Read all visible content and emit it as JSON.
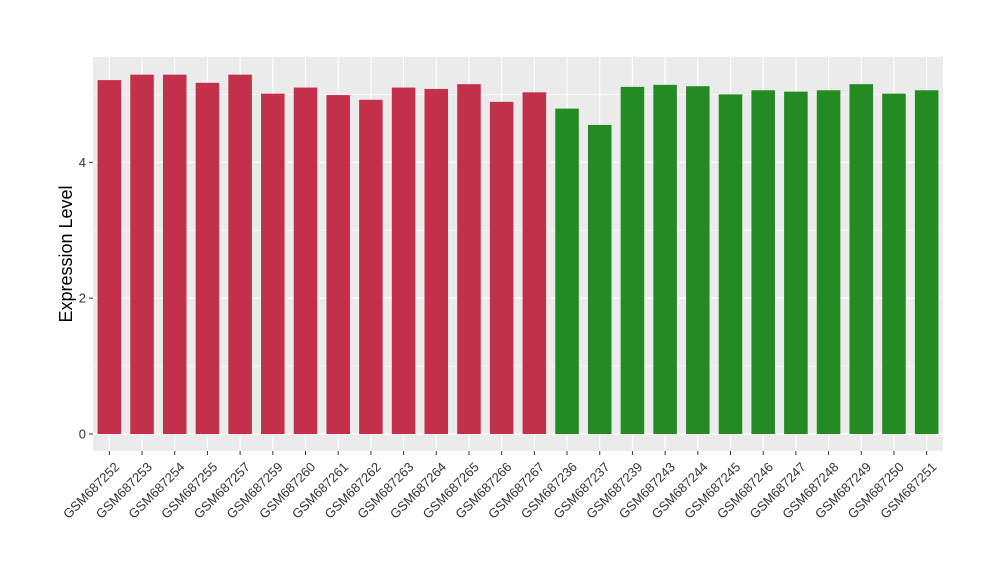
{
  "chart_data": {
    "type": "bar",
    "title": "",
    "xlabel": "",
    "ylabel": "Expression Level",
    "ylim": [
      -0.25,
      5.55
    ],
    "yticks": [
      0,
      2,
      4
    ],
    "grid": true,
    "legend": "none",
    "background": "#EBEBEB",
    "gridline_color": "#FFFFFF",
    "categories": [
      "GSM687252",
      "GSM687253",
      "GSM687254",
      "GSM687255",
      "GSM687257",
      "GSM687259",
      "GSM687260",
      "GSM687261",
      "GSM687262",
      "GSM687263",
      "GSM687264",
      "GSM687265",
      "GSM687266",
      "GSM687267",
      "GSM687236",
      "GSM687237",
      "GSM687239",
      "GSM687243",
      "GSM687244",
      "GSM687245",
      "GSM687246",
      "GSM687247",
      "GSM687248",
      "GSM687249",
      "GSM687250",
      "GSM687251"
    ],
    "values": [
      5.21,
      5.29,
      5.29,
      5.17,
      5.29,
      5.01,
      5.1,
      4.99,
      4.92,
      5.1,
      5.08,
      5.15,
      4.89,
      5.03,
      4.79,
      4.55,
      5.11,
      5.14,
      5.12,
      5.0,
      5.06,
      5.04,
      5.06,
      5.15,
      5.01,
      5.06
    ],
    "colors": [
      "#C3304A",
      "#C3304A",
      "#C3304A",
      "#C3304A",
      "#C3304A",
      "#C3304A",
      "#C3304A",
      "#C3304A",
      "#C3304A",
      "#C3304A",
      "#C3304A",
      "#C3304A",
      "#C3304A",
      "#C3304A",
      "#228B22",
      "#228B22",
      "#228B22",
      "#228B22",
      "#228B22",
      "#228B22",
      "#228B22",
      "#228B22",
      "#228B22",
      "#228B22",
      "#228B22",
      "#228B22"
    ]
  }
}
